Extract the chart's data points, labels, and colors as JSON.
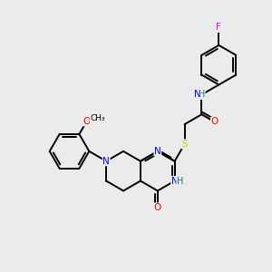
{
  "background_color": "#ebebeb",
  "bond_color": "#000000",
  "atom_colors": {
    "N": "#0000ff",
    "O": "#ff0000",
    "S": "#cccc00",
    "F": "#ff00cc",
    "H": "#008080",
    "C": "#000000"
  },
  "figsize": [
    3.0,
    3.0
  ],
  "dpi": 100,
  "bond_lw": 1.4
}
